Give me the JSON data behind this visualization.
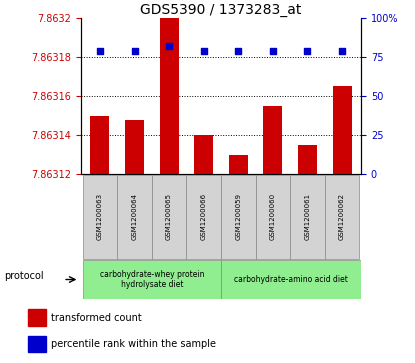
{
  "title": "GDS5390 / 1373283_at",
  "samples": [
    "GSM1200063",
    "GSM1200064",
    "GSM1200065",
    "GSM1200066",
    "GSM1200059",
    "GSM1200060",
    "GSM1200061",
    "GSM1200062"
  ],
  "red_values": [
    7.86315,
    7.863148,
    7.8632,
    7.86314,
    7.86313,
    7.863155,
    7.863135,
    7.863165
  ],
  "blue_values": [
    79,
    79,
    82,
    79,
    79,
    79,
    79,
    79
  ],
  "ylim_left": [
    7.86312,
    7.8632
  ],
  "ylim_right": [
    0,
    100
  ],
  "yticks_left": [
    7.86312,
    7.86314,
    7.86316,
    7.86318,
    7.8632
  ],
  "yticks_right": [
    0,
    25,
    50,
    75,
    100
  ],
  "ytick_labels_left": [
    "7.86312",
    "7.86314",
    "7.86316",
    "7.86318",
    "7.8632"
  ],
  "ytick_labels_right": [
    "0",
    "25",
    "50",
    "75",
    "100%"
  ],
  "group1_label": "carbohydrate-whey protein\nhydrolysate diet",
  "group2_label": "carbohydrate-amino acid diet",
  "group1_color": "#90ee90",
  "group2_color": "#90ee90",
  "bar_color": "#cc0000",
  "dot_color": "#0000cc",
  "legend_red": "transformed count",
  "legend_blue": "percentile rank within the sample",
  "protocol_label": "protocol",
  "sample_bg_color": "#d3d3d3",
  "title_fontsize": 10,
  "tick_fontsize": 7,
  "sample_fontsize": 5,
  "legend_fontsize": 7,
  "protocol_fontsize": 7
}
